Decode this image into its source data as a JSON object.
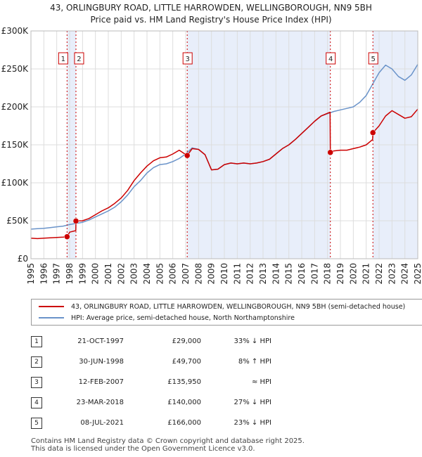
{
  "header": {
    "title": "43, ORLINGBURY ROAD, LITTLE HARROWDEN, WELLINGBOROUGH, NN9 5BH",
    "subtitle": "Price paid vs. HM Land Registry's House Price Index (HPI)"
  },
  "chart_data": {
    "type": "line",
    "title": "43, ORLINGBURY ROAD, LITTLE HARROWDEN, WELLINGBOROUGH, NN9 5BH",
    "subtitle": "Price paid vs. HM Land Registry's House Price Index (HPI)",
    "xlim": [
      1995,
      2025
    ],
    "ylim": [
      0,
      300000
    ],
    "x_ticks": [
      "1995",
      "1996",
      "1997",
      "1998",
      "1999",
      "2000",
      "2001",
      "2002",
      "2003",
      "2004",
      "2005",
      "2006",
      "2007",
      "2008",
      "2009",
      "2010",
      "2011",
      "2012",
      "2013",
      "2014",
      "2015",
      "2016",
      "2017",
      "2018",
      "2019",
      "2020",
      "2021",
      "2022",
      "2023",
      "2024",
      "2025"
    ],
    "y_ticks": [
      {
        "value": 0,
        "label": "£0"
      },
      {
        "value": 50000,
        "label": "£50K"
      },
      {
        "value": 100000,
        "label": "£100K"
      },
      {
        "value": 150000,
        "label": "£150K"
      },
      {
        "value": 200000,
        "label": "£200K"
      },
      {
        "value": 250000,
        "label": "£250K"
      },
      {
        "value": 300000,
        "label": "£300K"
      }
    ],
    "shaded_periods": [
      [
        1997.8,
        1998.49
      ],
      [
        2007.12,
        2018.22
      ],
      [
        2021.52,
        2025
      ]
    ],
    "sales": [
      {
        "n": "1",
        "x": 1997.8,
        "y": 29000
      },
      {
        "n": "2",
        "x": 1998.49,
        "y": 49700
      },
      {
        "n": "3",
        "x": 2007.12,
        "y": 135950
      },
      {
        "n": "4",
        "x": 2018.22,
        "y": 140000
      },
      {
        "n": "5",
        "x": 2021.52,
        "y": 166000
      }
    ],
    "series": [
      {
        "name": "43, ORLINGBURY ROAD, LITTLE HARROWDEN, WELLINGBOROUGH, NN9 5BH (semi-detached house)",
        "color": "#cc0000",
        "x": [
          1995,
          1995.5,
          1996,
          1996.5,
          1997,
          1997.5,
          1997.79,
          1997.8,
          1998.0,
          1998.48,
          1998.49,
          1999,
          1999.5,
          2000,
          2000.5,
          2001,
          2001.5,
          2002,
          2002.5,
          2003,
          2003.5,
          2004,
          2004.5,
          2005,
          2005.5,
          2006,
          2006.5,
          2007.12,
          2007.5,
          2008,
          2008.5,
          2009,
          2009.5,
          2010,
          2010.5,
          2011,
          2011.5,
          2012,
          2012.5,
          2013,
          2013.5,
          2014,
          2014.5,
          2015,
          2015.5,
          2016,
          2016.5,
          2017,
          2017.5,
          2018.2,
          2018.22,
          2018.5,
          2019,
          2019.5,
          2020,
          2020.5,
          2021,
          2021.5,
          2021.52,
          2022,
          2022.5,
          2023,
          2023.5,
          2024,
          2024.5,
          2025
        ],
        "y": [
          27000,
          26500,
          27000,
          27500,
          28000,
          28500,
          29000,
          29000,
          35000,
          37000,
          49700,
          50000,
          53000,
          58000,
          63000,
          67000,
          73000,
          80000,
          90000,
          103000,
          113000,
          122000,
          129000,
          133000,
          134000,
          138000,
          143000,
          135950,
          145000,
          144000,
          137000,
          117000,
          118000,
          124000,
          126000,
          125000,
          126000,
          125000,
          126000,
          128000,
          131000,
          138000,
          145000,
          150000,
          157000,
          165000,
          173000,
          181000,
          188000,
          193000,
          140000,
          142000,
          143000,
          143000,
          145000,
          147000,
          150000,
          157000,
          166000,
          175000,
          188000,
          195000,
          190000,
          185000,
          187000,
          197000
        ]
      },
      {
        "name": "HPI: Average price, semi-detached house, North Northamptonshire",
        "color": "#6a93c9",
        "x": [
          1995,
          1995.5,
          1996,
          1996.5,
          1997,
          1997.5,
          1998,
          1998.5,
          1999,
          1999.5,
          2000,
          2000.5,
          2001,
          2001.5,
          2002,
          2002.5,
          2003,
          2003.5,
          2004,
          2004.5,
          2005,
          2005.5,
          2006,
          2006.5,
          2007,
          2007.5,
          2008,
          2008.5,
          2009,
          2009.5,
          2010,
          2010.5,
          2011,
          2011.5,
          2012,
          2012.5,
          2013,
          2013.5,
          2014,
          2014.5,
          2015,
          2015.5,
          2016,
          2016.5,
          2017,
          2017.5,
          2018,
          2018.5,
          2019,
          2019.5,
          2020,
          2020.5,
          2021,
          2021.5,
          2022,
          2022.5,
          2023,
          2023.5,
          2024,
          2024.5,
          2025
        ],
        "y": [
          39000,
          39500,
          40000,
          41000,
          42000,
          43000,
          45000,
          46500,
          48000,
          51000,
          55000,
          59000,
          63000,
          68000,
          75000,
          84000,
          95000,
          103000,
          113000,
          120000,
          124000,
          125000,
          128000,
          132000,
          138000,
          146000,
          144000,
          137000,
          117000,
          118000,
          124000,
          126000,
          125000,
          126000,
          125000,
          126000,
          128000,
          131000,
          138000,
          145000,
          150000,
          157000,
          165000,
          173000,
          181000,
          188000,
          191000,
          194000,
          196000,
          198000,
          200000,
          206000,
          215000,
          230000,
          245000,
          255000,
          250000,
          240000,
          235000,
          242000,
          256000
        ]
      }
    ]
  },
  "legend": {
    "items": [
      {
        "label": "43, ORLINGBURY ROAD, LITTLE HARROWDEN, WELLINGBOROUGH, NN9 5BH (semi-detached house)",
        "color": "#cc0000"
      },
      {
        "label": "HPI: Average price, semi-detached house, North Northamptonshire",
        "color": "#6a93c9"
      }
    ]
  },
  "transactions": [
    {
      "n": "1",
      "date": "21-OCT-1997",
      "price": "£29,000",
      "hpi": "33% ↓ HPI"
    },
    {
      "n": "2",
      "date": "30-JUN-1998",
      "price": "£49,700",
      "hpi": "8% ↑ HPI"
    },
    {
      "n": "3",
      "date": "12-FEB-2007",
      "price": "£135,950",
      "hpi": "≈ HPI"
    },
    {
      "n": "4",
      "date": "23-MAR-2018",
      "price": "£140,000",
      "hpi": "27% ↓ HPI"
    },
    {
      "n": "5",
      "date": "08-JUL-2021",
      "price": "£166,000",
      "hpi": "23% ↓ HPI"
    }
  ],
  "footer": {
    "line1": "Contains HM Land Registry data © Crown copyright and database right 2025.",
    "line2": "This data is licensed under the Open Government Licence v3.0."
  }
}
